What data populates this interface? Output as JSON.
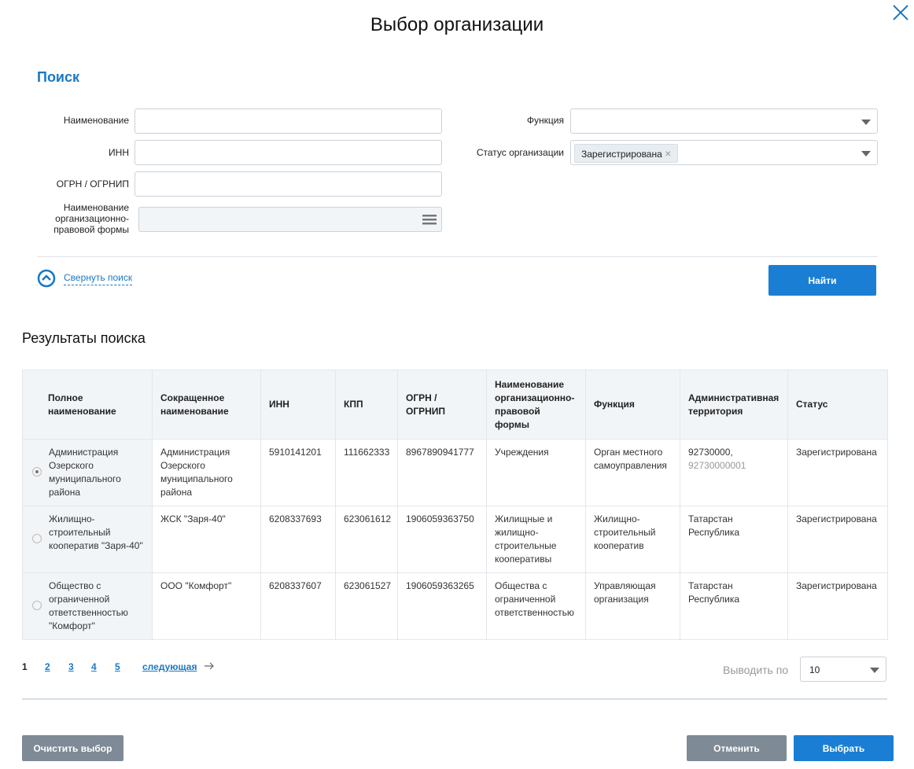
{
  "dialog": {
    "title": "Выбор организации",
    "close_icon": "close-icon"
  },
  "search": {
    "heading": "Поиск",
    "name_label": "Наименование",
    "name_value": "",
    "inn_label": "ИНН",
    "inn_value": "",
    "ogrn_label": "ОГРН / ОГРНИП",
    "ogrn_value": "",
    "opf_label": "Наименование организационно-правовой формы",
    "function_label": "Функция",
    "function_value": "",
    "status_label": "Статус организации",
    "status_tag": "Зарегистрирована",
    "collapse_label": "Свернуть поиск",
    "find_button": "Найти"
  },
  "results": {
    "heading": "Результаты поиска",
    "columns": [
      "Полное наименование",
      "Сокращенное наименование",
      "ИНН",
      "КПП",
      "ОГРН / ОГРНИП",
      "Наименование организационно-правовой формы",
      "Функция",
      "Административная территория",
      "Статус"
    ],
    "rows": [
      {
        "selected": true,
        "full": "Администрация Озерского муниципального района",
        "short": "Администрация Озерского муниципального района",
        "inn": "5910141201",
        "kpp": "111662333",
        "ogrn": "8967890941777",
        "opf": "Учреждения",
        "func": "Орган местного самоуправления",
        "territory": "92730000,",
        "territory_sub": "92730000001",
        "status": "Зарегистрирована"
      },
      {
        "selected": false,
        "full": "Жилищно-строительный кооператив \"Заря-40\"",
        "short": "ЖСК \"Заря-40\"",
        "inn": "6208337693",
        "kpp": "623061612",
        "ogrn": "1906059363750",
        "opf": "Жилищные и жилищно-строительные кооперативы",
        "func": "Жилищно-строительный кооператив",
        "territory": "Татарстан Республика",
        "territory_sub": "",
        "status": "Зарегистрирована"
      },
      {
        "selected": false,
        "full": "Общество с ограниченной ответственностью \"Комфорт\"",
        "short": "ООО \"Комфорт\"",
        "inn": "6208337607",
        "kpp": "623061527",
        "ogrn": "1906059363265",
        "opf": "Общества с ограниченной ответственностью",
        "func": "Управляющая организация",
        "territory": "Татарстан Республика",
        "territory_sub": "",
        "status": "Зарегистрирована"
      }
    ]
  },
  "pagination": {
    "pages": [
      "1",
      "2",
      "3",
      "4",
      "5"
    ],
    "current": "1",
    "next": "следующая",
    "per_page_label": "Выводить по",
    "per_page_value": "10"
  },
  "footer": {
    "clear": "Очистить выбор",
    "cancel": "Отменить",
    "select": "Выбрать"
  },
  "colors": {
    "accent": "#1a7fd4",
    "secondary": "#7e8a95"
  }
}
